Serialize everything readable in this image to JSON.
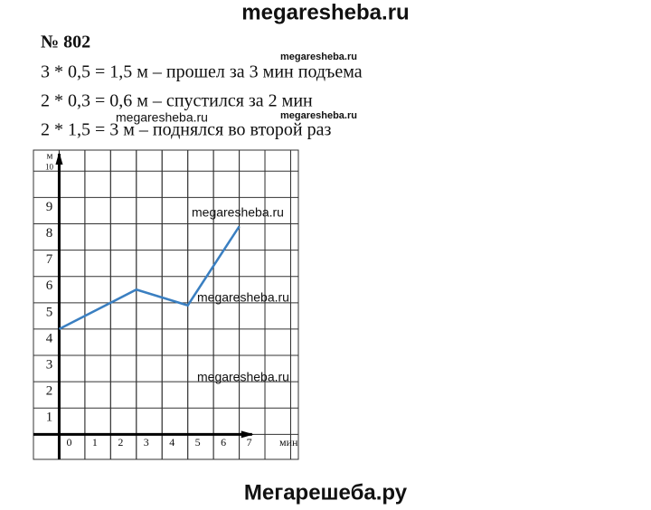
{
  "header": "megaresheba.ru",
  "problem": "№ 802",
  "lines": [
    "3 * 0,5 = 1,5 м – прошел за 3 мин подъема",
    "2 * 0,3 = 0,6 м – спустился за 2 мин",
    "2 * 1,5 = 3 м – поднялся во второй раз"
  ],
  "watermarks": [
    "megaresheba.ru",
    "megaresheba.ru",
    "megaresheba.ru",
    "megaresheba.ru",
    "megaresheba.ru",
    "megaresheba.ru"
  ],
  "footer": "Мегарешеба.ру",
  "chart_data": {
    "type": "line",
    "x": [
      0,
      3,
      5,
      7
    ],
    "values": [
      4,
      5.5,
      4.9,
      7.9
    ],
    "color": "#3a7fc1",
    "xlabel": "мин",
    "ylabel": "м",
    "xlim": [
      -1,
      9.3
    ],
    "ylim": [
      -0.95,
      10.8
    ],
    "xticks": [
      0,
      1,
      2,
      3,
      4,
      5,
      6,
      7
    ],
    "yticks": [
      1,
      2,
      3,
      4,
      5,
      6,
      7,
      8,
      9,
      10
    ],
    "grid": true
  }
}
